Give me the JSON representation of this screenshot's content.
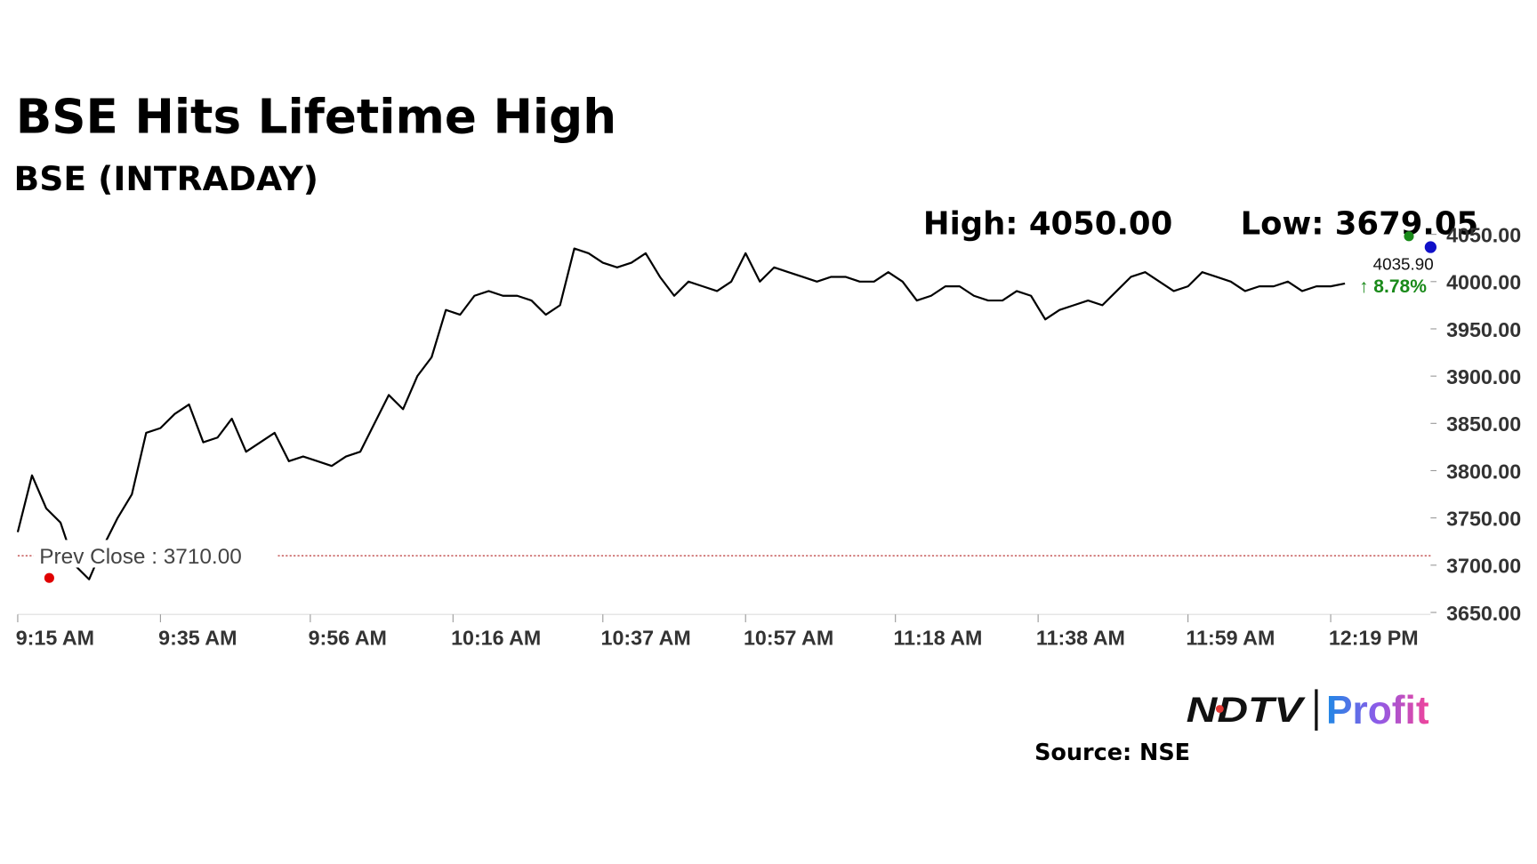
{
  "chart_data": {
    "type": "line",
    "title": "BSE Hits Lifetime High",
    "subtitle": "BSE (INTRADAY)",
    "high_label": "High: 4050.00",
    "low_label": "Low: 3679.05",
    "last_price": "4035.90",
    "change": "↑ 8.78%",
    "prev_close_label": "Prev Close : 3710.00",
    "prev_close": 3710,
    "x": [
      555,
      557,
      559,
      561,
      563,
      565,
      567,
      569,
      571,
      573,
      575,
      577,
      579,
      581,
      583,
      585,
      587,
      589,
      591,
      593,
      595,
      597,
      599,
      601,
      603,
      605,
      607,
      609,
      611,
      613,
      615,
      617,
      619,
      621,
      623,
      625,
      627,
      629,
      631,
      633,
      635,
      637,
      639,
      641,
      643,
      645,
      647,
      649,
      651,
      653,
      655,
      657,
      659,
      661,
      663,
      665,
      667,
      669,
      671,
      673,
      675,
      677,
      679,
      681,
      683,
      685,
      687,
      689,
      691,
      693,
      695,
      697,
      699,
      701,
      703,
      705,
      707,
      709,
      711,
      713,
      715,
      717,
      719,
      721,
      723,
      725,
      727,
      729,
      731,
      733,
      735,
      737,
      739,
      741
    ],
    "series": [
      {
        "color": "#000000",
        "values": [
          3735,
          3795,
          3760,
          3745,
          3700,
          3685,
          3720,
          3750,
          3775,
          3840,
          3845,
          3860,
          3870,
          3830,
          3835,
          3855,
          3820,
          3830,
          3840,
          3810,
          3815,
          3810,
          3805,
          3815,
          3820,
          3850,
          3880,
          3865,
          3900,
          3920,
          3970,
          3965,
          3985,
          3990,
          3985,
          3985,
          3980,
          3965,
          3975,
          4035,
          4030,
          4020,
          4015,
          4020,
          4030,
          4005,
          3985,
          4000,
          3995,
          3990,
          4000,
          4030,
          4000,
          4015,
          4010,
          4005,
          4000,
          4005,
          4005,
          4000,
          4000,
          4010,
          4000,
          3980,
          3985,
          3995,
          3995,
          3985,
          3980,
          3980,
          3990,
          3985,
          3960,
          3970,
          3975,
          3980,
          3975,
          3990,
          4005,
          4010,
          4000,
          3990,
          3995,
          4010,
          4005,
          4000,
          3990,
          3995,
          3995,
          4000,
          3990,
          3995,
          3995,
          3998
        ]
      }
    ],
    "xlim": [
      555,
      753
    ],
    "xticks": [
      {
        "value": 555,
        "label": "9:15 AM"
      },
      {
        "value": 575,
        "label": "9:35 AM"
      },
      {
        "value": 596,
        "label": "9:56 AM"
      },
      {
        "value": 616,
        "label": "10:16 AM"
      },
      {
        "value": 637,
        "label": "10:37 AM"
      },
      {
        "value": 657,
        "label": "10:57 AM"
      },
      {
        "value": 678,
        "label": "11:18 AM"
      },
      {
        "value": 698,
        "label": "11:38 AM"
      },
      {
        "value": 719,
        "label": "11:59 AM"
      },
      {
        "value": 739,
        "label": "12:19 PM"
      }
    ],
    "ylim": [
      3650,
      4050
    ],
    "yticks": [
      {
        "value": 3650,
        "label": "3650.00"
      },
      {
        "value": 3700,
        "label": "3700.00"
      },
      {
        "value": 3750,
        "label": "3750.00"
      },
      {
        "value": 3800,
        "label": "3800.00"
      },
      {
        "value": 3850,
        "label": "3850.00"
      },
      {
        "value": 3900,
        "label": "3900.00"
      },
      {
        "value": 3950,
        "label": "3950.00"
      },
      {
        "value": 4000,
        "label": "4000.00"
      },
      {
        "value": 4050,
        "label": "4050.00"
      }
    ],
    "brand": "NDTV",
    "brand_sub": "Profit",
    "source": "Source: NSE"
  }
}
